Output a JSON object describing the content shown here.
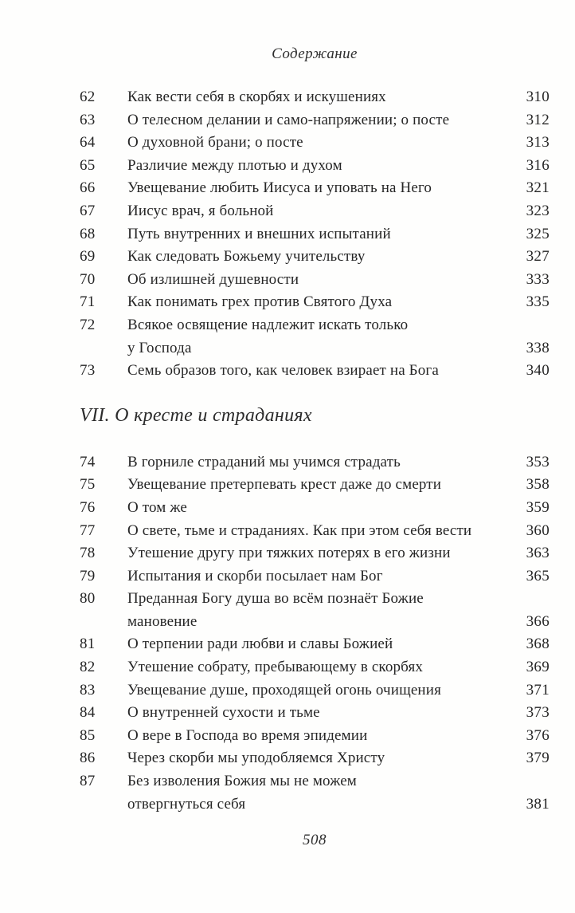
{
  "page": {
    "header": "Содержание",
    "footer_page_number": "508"
  },
  "sections": [
    {
      "entries": [
        {
          "num": "62",
          "title": "Как вести себя в скорбях и искушениях",
          "page": "310"
        },
        {
          "num": "63",
          "title": "О телесном делании и само-напряжении; о посте",
          "page": "312"
        },
        {
          "num": "64",
          "title": "О духовной брани; о посте",
          "page": "313"
        },
        {
          "num": "65",
          "title": "Различие между плотью и духом",
          "page": "316"
        },
        {
          "num": "66",
          "title": "Увещевание любить Иисуса и уповать на Него",
          "page": "321"
        },
        {
          "num": "67",
          "title": "Иисус врач, я больной",
          "page": "323"
        },
        {
          "num": "68",
          "title": "Путь внутренних и внешних испытаний",
          "page": "325"
        },
        {
          "num": "69",
          "title": "Как следовать Божьему учительству",
          "page": "327"
        },
        {
          "num": "70",
          "title": "Об излишней душевности",
          "page": "333"
        },
        {
          "num": "71",
          "title": "Как понимать грех против Святого Духа",
          "page": "335"
        },
        {
          "num": "72",
          "title": "Всякое освящение надлежит искать только\nу Господа",
          "page": "338"
        },
        {
          "num": "73",
          "title": "Семь образов того, как человек взирает на Бога",
          "page": "340"
        }
      ]
    },
    {
      "heading": "VII. О кресте и страданиях",
      "entries": [
        {
          "num": "74",
          "title": "В горниле страданий мы учимся страдать",
          "page": "353"
        },
        {
          "num": "75",
          "title": "Увещевание претерпевать крест даже до смерти",
          "page": "358"
        },
        {
          "num": "76",
          "title": "О том же",
          "page": "359"
        },
        {
          "num": "77",
          "title": "О свете, тьме и страданиях. Как при этом себя вести",
          "page": "360"
        },
        {
          "num": "78",
          "title": "Утешение другу при тяжких потерях в его жизни",
          "page": "363"
        },
        {
          "num": "79",
          "title": "Испытания и скорби посылает нам Бог",
          "page": "365"
        },
        {
          "num": "80",
          "title": "Преданная Богу душа во всём познаёт Божие\nмановение",
          "page": "366"
        },
        {
          "num": "81",
          "title": "О терпении ради любви и славы Божией",
          "page": "368"
        },
        {
          "num": "82",
          "title": "Утешение собрату, пребывающему в скорбях",
          "page": "369"
        },
        {
          "num": "83",
          "title": "Увещевание душе, проходящей огонь очищения",
          "page": "371"
        },
        {
          "num": "84",
          "title": "О внутренней сухости и тьме",
          "page": "373"
        },
        {
          "num": "85",
          "title": "О вере в Господа во время эпидемии",
          "page": "376"
        },
        {
          "num": "86",
          "title": "Через скорби мы уподобляемся Христу",
          "page": "379"
        },
        {
          "num": "87",
          "title": "Без изволения Божия мы не можем\nотвергнуться себя",
          "page": "381"
        }
      ]
    }
  ]
}
